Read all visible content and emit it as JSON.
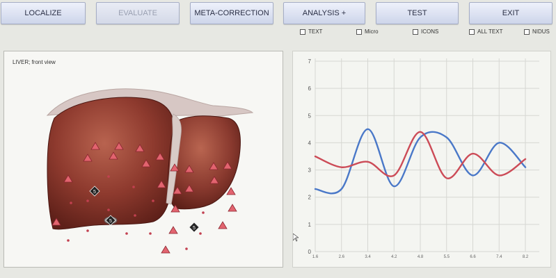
{
  "toolbar": {
    "buttons": [
      {
        "label": "LOCALIZE",
        "enabled": true
      },
      {
        "label": "EVALUATE",
        "enabled": false
      },
      {
        "label": "META-CORRECTION",
        "enabled": true
      },
      {
        "label": "ANALYSIS +",
        "enabled": true
      },
      {
        "label": "TEST",
        "enabled": true
      },
      {
        "label": "EXIT",
        "enabled": true
      }
    ]
  },
  "options": {
    "checkboxes": [
      {
        "label": "TEXT",
        "checked": false
      },
      {
        "label": "Micro",
        "checked": false
      },
      {
        "label": "ICONS",
        "checked": false
      },
      {
        "label": "ALL TEXT",
        "checked": false
      },
      {
        "label": "NIDUS",
        "checked": false
      }
    ]
  },
  "organ_view": {
    "title": "LIVER; front  view",
    "markers": [
      "5",
      "5",
      "5"
    ]
  },
  "colors": {
    "series_blue": "#4a78c8",
    "series_red": "#cc4b57",
    "marker_fill": "#e2646f",
    "button_text": "#2a2f45"
  },
  "chart_data": {
    "type": "line",
    "x_ticks": [
      "1.6",
      "2.6",
      "3.4",
      "4.2",
      "4.8",
      "5.5",
      "6.6",
      "7.4",
      "8.2"
    ],
    "y_ticks": [
      "0",
      "1",
      "2",
      "3",
      "4",
      "5",
      "6",
      "7"
    ],
    "ylim": [
      0,
      7
    ],
    "grid": true,
    "series": [
      {
        "color": "#4a78c8",
        "values": [
          2.3,
          2.3,
          4.5,
          2.4,
          4.2,
          4.2,
          2.8,
          4.0,
          3.1
        ]
      },
      {
        "color": "#cc4b57",
        "values": [
          3.5,
          3.1,
          3.3,
          2.8,
          4.4,
          2.7,
          3.6,
          2.8,
          3.4
        ]
      }
    ]
  }
}
